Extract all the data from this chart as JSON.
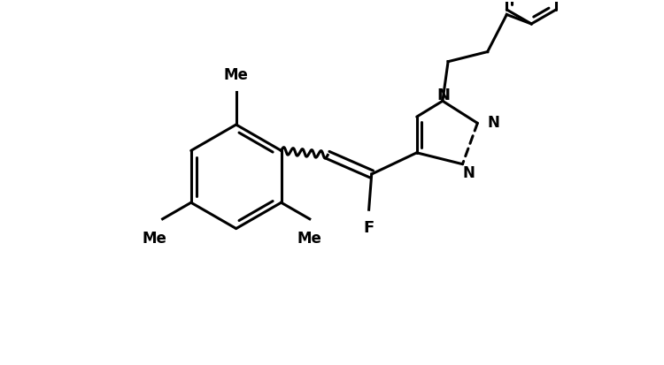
{
  "background_color": "#ffffff",
  "line_color": "#000000",
  "line_width": 2.2,
  "fig_width": 7.5,
  "fig_height": 4.14,
  "dpi": 100,
  "xlim": [
    -1.0,
    8.5
  ],
  "ylim": [
    -1.8,
    4.8
  ]
}
